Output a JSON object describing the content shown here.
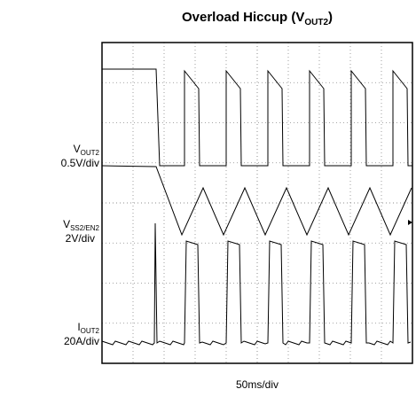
{
  "title": {
    "main": "Overload Hiccup (V",
    "sub": "OUT2",
    "end": ")"
  },
  "channels": [
    {
      "symbol": "V",
      "sub": "OUT2",
      "scale": "0.5V/div"
    },
    {
      "symbol": "V",
      "sub": "SS2/EN2",
      "scale": "2V/div"
    },
    {
      "symbol": "I",
      "sub": "OUT2",
      "scale": "20A/div"
    }
  ],
  "timebase": "50ms/div"
}
